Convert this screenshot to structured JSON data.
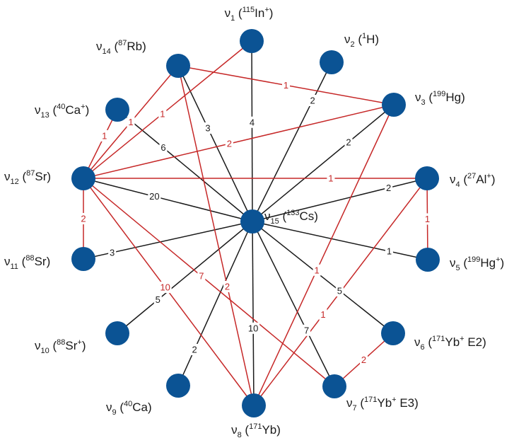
{
  "colors": {
    "node": "#0b5394",
    "edge_black": "#1a1a1a",
    "edge_red": "#c62828",
    "background": "#ffffff"
  },
  "nodes": [
    {
      "id": "v1",
      "sym": "ν",
      "sub": "1",
      "open": " (",
      "isotope_sup": "115",
      "element": "In",
      "charge_sup": "+",
      "suffix": ")"
    },
    {
      "id": "v2",
      "sym": "ν",
      "sub": "2",
      "open": " (",
      "isotope_sup": "1",
      "element": "H",
      "charge_sup": "",
      "suffix": ")"
    },
    {
      "id": "v3",
      "sym": "ν",
      "sub": "3",
      "open": " (",
      "isotope_sup": "199",
      "element": "Hg",
      "charge_sup": "",
      "suffix": ")"
    },
    {
      "id": "v4",
      "sym": "ν",
      "sub": "4",
      "open": " (",
      "isotope_sup": "27",
      "element": "Al",
      "charge_sup": "+",
      "suffix": ")"
    },
    {
      "id": "v5",
      "sym": "ν",
      "sub": "5",
      "open": " (",
      "isotope_sup": "199",
      "element": "Hg",
      "charge_sup": "+",
      "suffix": ")"
    },
    {
      "id": "v6",
      "sym": "ν",
      "sub": "6",
      "open": " (",
      "isotope_sup": "171",
      "element": "Yb",
      "charge_sup": "+",
      "suffix": " E2)"
    },
    {
      "id": "v7",
      "sym": "ν",
      "sub": "7",
      "open": " (",
      "isotope_sup": "171",
      "element": "Yb",
      "charge_sup": "+",
      "suffix": " E3)"
    },
    {
      "id": "v8",
      "sym": "ν",
      "sub": "8",
      "open": " (",
      "isotope_sup": "171",
      "element": "Yb",
      "charge_sup": "",
      "suffix": ")"
    },
    {
      "id": "v9",
      "sym": "ν",
      "sub": "9",
      "open": " (",
      "isotope_sup": "40",
      "element": "Ca",
      "charge_sup": "",
      "suffix": ")"
    },
    {
      "id": "v10",
      "sym": "ν",
      "sub": "10",
      "open": " (",
      "isotope_sup": "88",
      "element": "Sr",
      "charge_sup": "+",
      "suffix": ")"
    },
    {
      "id": "v11",
      "sym": "ν",
      "sub": "11",
      "open": " (",
      "isotope_sup": "88",
      "element": "Sr",
      "charge_sup": "",
      "suffix": ")"
    },
    {
      "id": "v12",
      "sym": "ν",
      "sub": "12",
      "open": " (",
      "isotope_sup": "87",
      "element": "Sr",
      "charge_sup": "",
      "suffix": ")"
    },
    {
      "id": "v13",
      "sym": "ν",
      "sub": "13",
      "open": " (",
      "isotope_sup": "40",
      "element": "Ca",
      "charge_sup": "+",
      "suffix": ")"
    },
    {
      "id": "v14",
      "sym": "ν",
      "sub": "14",
      "open": " (",
      "isotope_sup": "87",
      "element": "Rb",
      "charge_sup": "",
      "suffix": ")"
    },
    {
      "id": "v15",
      "sym": "ν",
      "sub": "15",
      "open": " (",
      "isotope_sup": "133",
      "element": "Cs",
      "charge_sup": "",
      "suffix": ")"
    }
  ],
  "edges": [
    {
      "from": "v15",
      "to": "v1",
      "label": "4",
      "color": "black"
    },
    {
      "from": "v15",
      "to": "v2",
      "label": "2",
      "color": "black"
    },
    {
      "from": "v15",
      "to": "v3",
      "label": "2",
      "color": "black"
    },
    {
      "from": "v15",
      "to": "v4",
      "label": "2",
      "color": "black"
    },
    {
      "from": "v15",
      "to": "v5",
      "label": "1",
      "color": "black"
    },
    {
      "from": "v15",
      "to": "v6",
      "label": "5",
      "color": "black"
    },
    {
      "from": "v15",
      "to": "v7",
      "label": "7",
      "color": "black"
    },
    {
      "from": "v15",
      "to": "v8",
      "label": "10",
      "color": "black"
    },
    {
      "from": "v15",
      "to": "v9",
      "label": "2",
      "color": "black"
    },
    {
      "from": "v15",
      "to": "v10",
      "label": "5",
      "color": "black"
    },
    {
      "from": "v15",
      "to": "v11",
      "label": "3",
      "color": "black"
    },
    {
      "from": "v15",
      "to": "v12",
      "label": "20",
      "color": "black"
    },
    {
      "from": "v15",
      "to": "v13",
      "label": "6",
      "color": "black"
    },
    {
      "from": "v15",
      "to": "v14",
      "label": "3",
      "color": "black"
    },
    {
      "from": "v14",
      "to": "v3",
      "label": "1",
      "color": "red"
    },
    {
      "from": "v14",
      "to": "v12",
      "label": "1",
      "color": "red"
    },
    {
      "from": "v14",
      "to": "v8",
      "label": "2",
      "color": "red"
    },
    {
      "from": "v1",
      "to": "v12",
      "label": "1",
      "color": "red"
    },
    {
      "from": "v13",
      "to": "v12",
      "label": "1",
      "color": "red"
    },
    {
      "from": "v12",
      "to": "v3",
      "label": "2",
      "color": "red"
    },
    {
      "from": "v12",
      "to": "v4",
      "label": "1",
      "color": "red"
    },
    {
      "from": "v12",
      "to": "v11",
      "label": "2",
      "color": "red"
    },
    {
      "from": "v12",
      "to": "v7",
      "label": "7",
      "color": "red"
    },
    {
      "from": "v12",
      "to": "v8",
      "label": "10",
      "color": "red"
    },
    {
      "from": "v3",
      "to": "v8",
      "label": "1",
      "color": "red"
    },
    {
      "from": "v4",
      "to": "v8",
      "label": "1",
      "color": "red"
    },
    {
      "from": "v4",
      "to": "v5",
      "label": "1",
      "color": "red"
    },
    {
      "from": "v6",
      "to": "v7",
      "label": "2",
      "color": "red"
    }
  ]
}
